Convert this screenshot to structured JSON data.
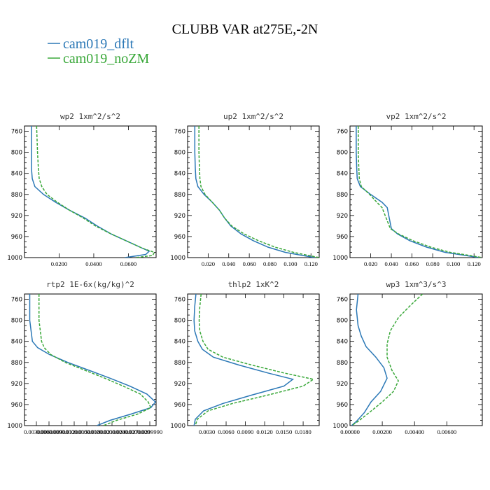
{
  "figure": {
    "title": "CLUBB VAR at275E,-2N",
    "legend": [
      {
        "label": "cam019_dflt",
        "color": "#2b78b6"
      },
      {
        "label": "cam019_noZM",
        "color": "#3aa83a"
      }
    ]
  },
  "chart_data": [
    {
      "type": "line",
      "title": "wp2   1xm^2/s^2",
      "ylim": [
        1000,
        750
      ],
      "yticks": [
        760,
        800,
        840,
        880,
        920,
        960,
        1000
      ],
      "xlim": [
        0.0,
        0.076
      ],
      "xticks": [
        0.02,
        0.04,
        0.06
      ],
      "xticklabels": [
        "0.0200",
        "0.0400",
        "0.0600"
      ],
      "series": [
        {
          "name": "cam019_dflt",
          "x": [
            0.004,
            0.004,
            0.004,
            0.0045,
            0.006,
            0.011,
            0.018,
            0.026,
            0.035,
            0.042,
            0.05,
            0.06,
            0.068,
            0.072,
            0.07,
            0.058
          ],
          "y": [
            750,
            800,
            830,
            850,
            865,
            880,
            895,
            910,
            925,
            940,
            955,
            970,
            982,
            988,
            994,
            1000
          ]
        },
        {
          "name": "cam019_noZM",
          "x": [
            0.007,
            0.0075,
            0.008,
            0.0085,
            0.01,
            0.013,
            0.019,
            0.026,
            0.034,
            0.041,
            0.05,
            0.06,
            0.068,
            0.075,
            0.074,
            0.064
          ],
          "y": [
            750,
            800,
            830,
            850,
            865,
            880,
            895,
            910,
            925,
            940,
            955,
            970,
            982,
            990,
            996,
            1000
          ]
        }
      ]
    },
    {
      "type": "line",
      "title": "up2   1xm^2/s^2",
      "ylim": [
        1000,
        750
      ],
      "yticks": [
        760,
        800,
        840,
        880,
        920,
        960,
        1000
      ],
      "xlim": [
        0.0,
        0.128
      ],
      "xticks": [
        0.02,
        0.04,
        0.06,
        0.08,
        0.1,
        0.12
      ],
      "xticklabels": [
        "0.020",
        "0.040",
        "0.060",
        "0.080",
        "0.100",
        "0.120"
      ],
      "series": [
        {
          "name": "cam019_dflt",
          "x": [
            0.007,
            0.007,
            0.0075,
            0.008,
            0.01,
            0.016,
            0.024,
            0.031,
            0.036,
            0.042,
            0.052,
            0.064,
            0.078,
            0.095,
            0.112,
            0.124
          ],
          "y": [
            750,
            800,
            830,
            850,
            865,
            880,
            895,
            910,
            925,
            940,
            955,
            968,
            980,
            990,
            996,
            1000
          ]
        },
        {
          "name": "cam019_noZM",
          "x": [
            0.011,
            0.011,
            0.0115,
            0.012,
            0.013,
            0.017,
            0.024,
            0.031,
            0.036,
            0.043,
            0.055,
            0.069,
            0.085,
            0.103,
            0.118,
            0.128
          ],
          "y": [
            750,
            800,
            830,
            850,
            865,
            880,
            895,
            910,
            925,
            940,
            955,
            968,
            980,
            990,
            996,
            1000
          ]
        }
      ]
    },
    {
      "type": "line",
      "title": "vp2   1xm^2/s^2",
      "ylim": [
        1000,
        750
      ],
      "yticks": [
        760,
        800,
        840,
        880,
        920,
        960,
        1000
      ],
      "xlim": [
        0.0,
        0.128
      ],
      "xticks": [
        0.02,
        0.04,
        0.06,
        0.08,
        0.1,
        0.12
      ],
      "xticklabels": [
        "0.020",
        "0.040",
        "0.060",
        "0.080",
        "0.100",
        "0.120"
      ],
      "series": [
        {
          "name": "cam019_dflt",
          "x": [
            0.006,
            0.006,
            0.0065,
            0.007,
            0.01,
            0.02,
            0.031,
            0.036,
            0.038,
            0.04,
            0.046,
            0.058,
            0.074,
            0.092,
            0.112,
            0.125
          ],
          "y": [
            750,
            800,
            830,
            850,
            865,
            880,
            895,
            905,
            925,
            945,
            955,
            968,
            980,
            990,
            996,
            1000
          ]
        },
        {
          "name": "cam019_noZM",
          "x": [
            0.008,
            0.008,
            0.0085,
            0.009,
            0.011,
            0.019,
            0.026,
            0.031,
            0.035,
            0.039,
            0.047,
            0.061,
            0.078,
            0.097,
            0.116,
            0.128
          ],
          "y": [
            750,
            800,
            830,
            850,
            865,
            880,
            895,
            905,
            925,
            945,
            955,
            968,
            980,
            990,
            996,
            1000
          ]
        }
      ]
    },
    {
      "type": "line",
      "title": "rtp2   1E-6x(kg/kg)^2",
      "ylim": [
        1000,
        750
      ],
      "yticks": [
        760,
        800,
        840,
        880,
        920,
        960,
        1000
      ],
      "xlim": [
        1.0,
        11.0
      ],
      "xticks": [],
      "xticklabels": [
        "0.0030000",
        "0.0060000",
        "0.0090000",
        "0.0120000",
        "0.0150000",
        "0.0180000",
        "0.0210000",
        "0.0240000",
        "0.0270000",
        "0.0299990"
      ],
      "series": [
        {
          "name": "cam019_dflt",
          "x": [
            1.4,
            1.4,
            1.5,
            1.6,
            2.0,
            2.9,
            4.3,
            5.9,
            7.5,
            9.0,
            10.3,
            10.95,
            10.6,
            9.1,
            7.5,
            6.5
          ],
          "y": [
            750,
            800,
            820,
            840,
            852,
            865,
            880,
            895,
            910,
            925,
            940,
            955,
            966,
            978,
            990,
            1000
          ]
        },
        {
          "name": "cam019_noZM",
          "x": [
            2.1,
            2.1,
            2.2,
            2.3,
            2.5,
            3.0,
            4.1,
            5.6,
            7.1,
            8.5,
            9.8,
            10.4,
            10.6,
            9.6,
            8.0,
            7.0
          ],
          "y": [
            750,
            800,
            820,
            840,
            852,
            865,
            880,
            895,
            910,
            925,
            940,
            955,
            966,
            978,
            990,
            1000
          ]
        }
      ]
    },
    {
      "type": "line",
      "title": "thlp2   1xK^2",
      "ylim": [
        1000,
        750
      ],
      "yticks": [
        760,
        800,
        840,
        880,
        920,
        960,
        1000
      ],
      "xlim": [
        0.0,
        0.0205
      ],
      "xticks": [
        0.003,
        0.006,
        0.009,
        0.012,
        0.015,
        0.018
      ],
      "xticklabels": [
        "0.0030",
        "0.0060",
        "0.0090",
        "0.0120",
        "0.0150",
        "0.0180"
      ],
      "series": [
        {
          "name": "cam019_dflt",
          "x": [
            0.0013,
            0.0011,
            0.001,
            0.0011,
            0.0016,
            0.0023,
            0.004,
            0.008,
            0.0125,
            0.0164,
            0.015,
            0.01,
            0.0055,
            0.0025,
            0.0012,
            0.001
          ],
          "y": [
            750,
            775,
            800,
            820,
            840,
            855,
            870,
            885,
            900,
            912,
            925,
            942,
            958,
            972,
            988,
            1000
          ]
        },
        {
          "name": "cam019_noZM",
          "x": [
            0.0021,
            0.0019,
            0.0018,
            0.0019,
            0.0024,
            0.0032,
            0.0055,
            0.01,
            0.015,
            0.0196,
            0.018,
            0.0125,
            0.007,
            0.0032,
            0.0015,
            0.0012
          ],
          "y": [
            750,
            775,
            800,
            820,
            840,
            855,
            870,
            885,
            900,
            912,
            925,
            942,
            958,
            972,
            988,
            1000
          ]
        }
      ]
    },
    {
      "type": "line",
      "title": "wp3   1xm^3/s^3",
      "ylim": [
        1000,
        750
      ],
      "yticks": [
        760,
        800,
        840,
        880,
        920,
        960,
        1000
      ],
      "xlim": [
        0.0,
        0.0082
      ],
      "xticks": [
        0.0,
        0.002,
        0.004,
        0.006
      ],
      "xticklabels": [
        "0.00000",
        "0.00200",
        "0.00400",
        "0.00600"
      ],
      "series": [
        {
          "name": "cam019_dflt",
          "x": [
            0.0005,
            0.0004,
            0.0005,
            0.0007,
            0.001,
            0.0016,
            0.0021,
            0.0023,
            0.0019,
            0.0013,
            0.0009,
            0.0004,
            0.0001
          ],
          "y": [
            750,
            780,
            810,
            830,
            850,
            870,
            890,
            910,
            935,
            955,
            975,
            992,
            1000
          ]
        },
        {
          "name": "cam019_noZM",
          "x": [
            0.0045,
            0.0038,
            0.003,
            0.0025,
            0.0023,
            0.0023,
            0.0026,
            0.003,
            0.0027,
            0.002,
            0.0012,
            0.0005,
            0.0001
          ],
          "y": [
            750,
            770,
            795,
            820,
            845,
            870,
            895,
            915,
            935,
            955,
            975,
            992,
            1000
          ]
        }
      ]
    }
  ]
}
